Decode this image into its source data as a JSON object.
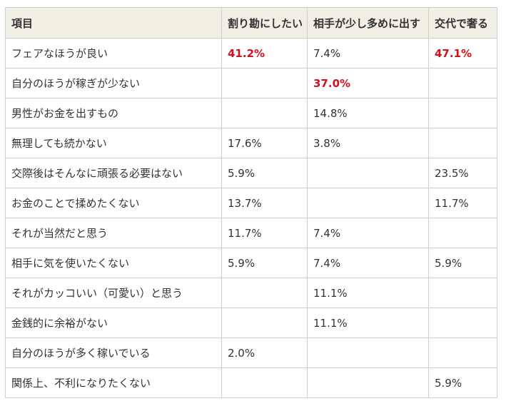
{
  "table": {
    "headers": [
      "項目",
      "割り勘にしたい",
      "相手が少し多めに出す",
      "交代で奢る"
    ],
    "rows": [
      {
        "item": "フェアなほうが良い",
        "split": "41.2%",
        "partner_more": "7.4%",
        "alternate": "47.1%",
        "highlight": [
          "split",
          "alternate"
        ]
      },
      {
        "item": "自分のほうが稼ぎが少ない",
        "split": "",
        "partner_more": "37.0%",
        "alternate": "",
        "highlight": [
          "partner_more"
        ]
      },
      {
        "item": "男性がお金を出すもの",
        "split": "",
        "partner_more": "14.8%",
        "alternate": "",
        "highlight": []
      },
      {
        "item": "無理しても続かない",
        "split": "17.6%",
        "partner_more": "3.8%",
        "alternate": "",
        "highlight": []
      },
      {
        "item": "交際後はそんなに頑張る必要はない",
        "split": "5.9%",
        "partner_more": "",
        "alternate": "23.5%",
        "highlight": []
      },
      {
        "item": "お金のことで揉めたくない",
        "split": "13.7%",
        "partner_more": "",
        "alternate": "11.7%",
        "highlight": []
      },
      {
        "item": "それが当然だと思う",
        "split": "11.7%",
        "partner_more": "7.4%",
        "alternate": "",
        "highlight": []
      },
      {
        "item": "相手に気を使いたくない",
        "split": "5.9%",
        "partner_more": "7.4%",
        "alternate": "5.9%",
        "highlight": []
      },
      {
        "item": "それがカッコいい（可愛い）と思う",
        "split": "",
        "partner_more": "11.1%",
        "alternate": "",
        "highlight": []
      },
      {
        "item": "金銭的に余裕がない",
        "split": "",
        "partner_more": "11.1%",
        "alternate": "",
        "highlight": []
      },
      {
        "item": "自分のほうが多く稼いでいる",
        "split": "2.0%",
        "partner_more": "",
        "alternate": "",
        "highlight": []
      },
      {
        "item": "関係上、不利になりたくない",
        "split": "",
        "partner_more": "",
        "alternate": "5.9%",
        "highlight": []
      }
    ]
  },
  "colors": {
    "header_bg": "#f2efe4",
    "border": "#cfcfcf",
    "highlight_text": "#d0121b",
    "body_text": "#333333"
  }
}
